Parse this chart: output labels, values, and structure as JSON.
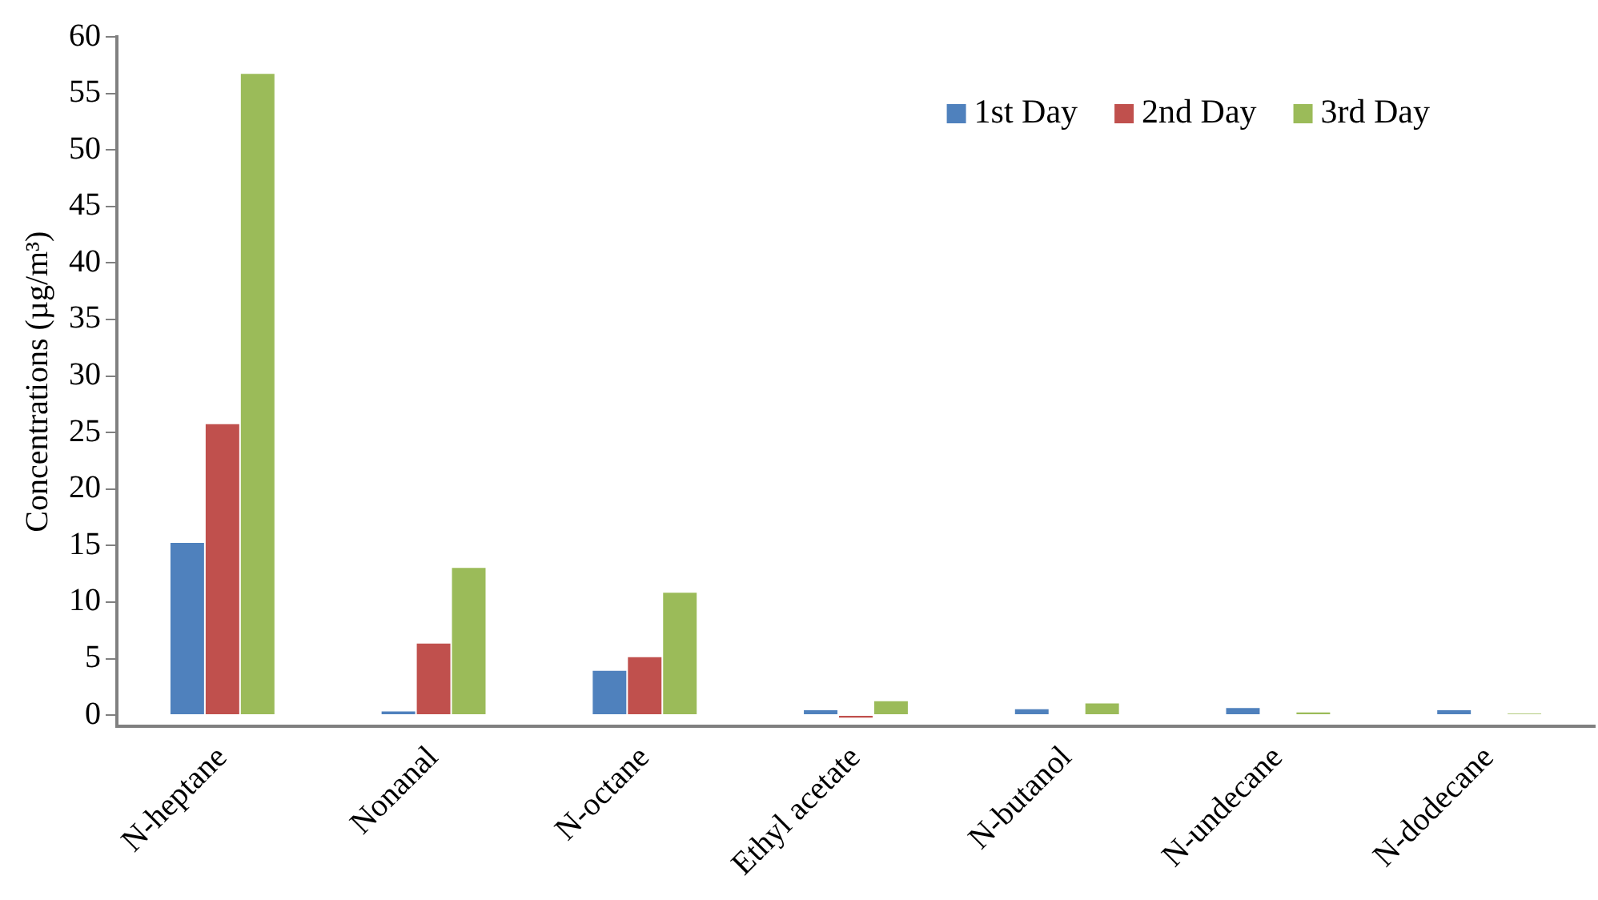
{
  "chart_data": {
    "type": "bar",
    "ylabel": "Concentrations (µg/m³)",
    "categories": [
      "N-heptane",
      "Nonanal",
      "N-octane",
      "Ethyl acetate",
      "N-butanol",
      "N-undecane",
      "N-dodecane"
    ],
    "series": [
      {
        "name": "1st Day",
        "color": "#4f81bd",
        "values": [
          15.3,
          0.4,
          4.0,
          0.5,
          0.6,
          0.7,
          0.5
        ]
      },
      {
        "name": "2nd Day",
        "color": "#c0504d",
        "values": [
          25.8,
          6.4,
          5.2,
          -0.3,
          0,
          0,
          0
        ]
      },
      {
        "name": "3rd Day",
        "color": "#9bbb59",
        "values": [
          56.8,
          13.1,
          10.9,
          1.3,
          1.1,
          0.3,
          0.2
        ]
      }
    ],
    "ylim": [
      -1,
      60
    ],
    "yticks": [
      0,
      5,
      10,
      15,
      20,
      25,
      30,
      35,
      40,
      45,
      50,
      55,
      60
    ],
    "grid": false,
    "legend": "top right"
  }
}
